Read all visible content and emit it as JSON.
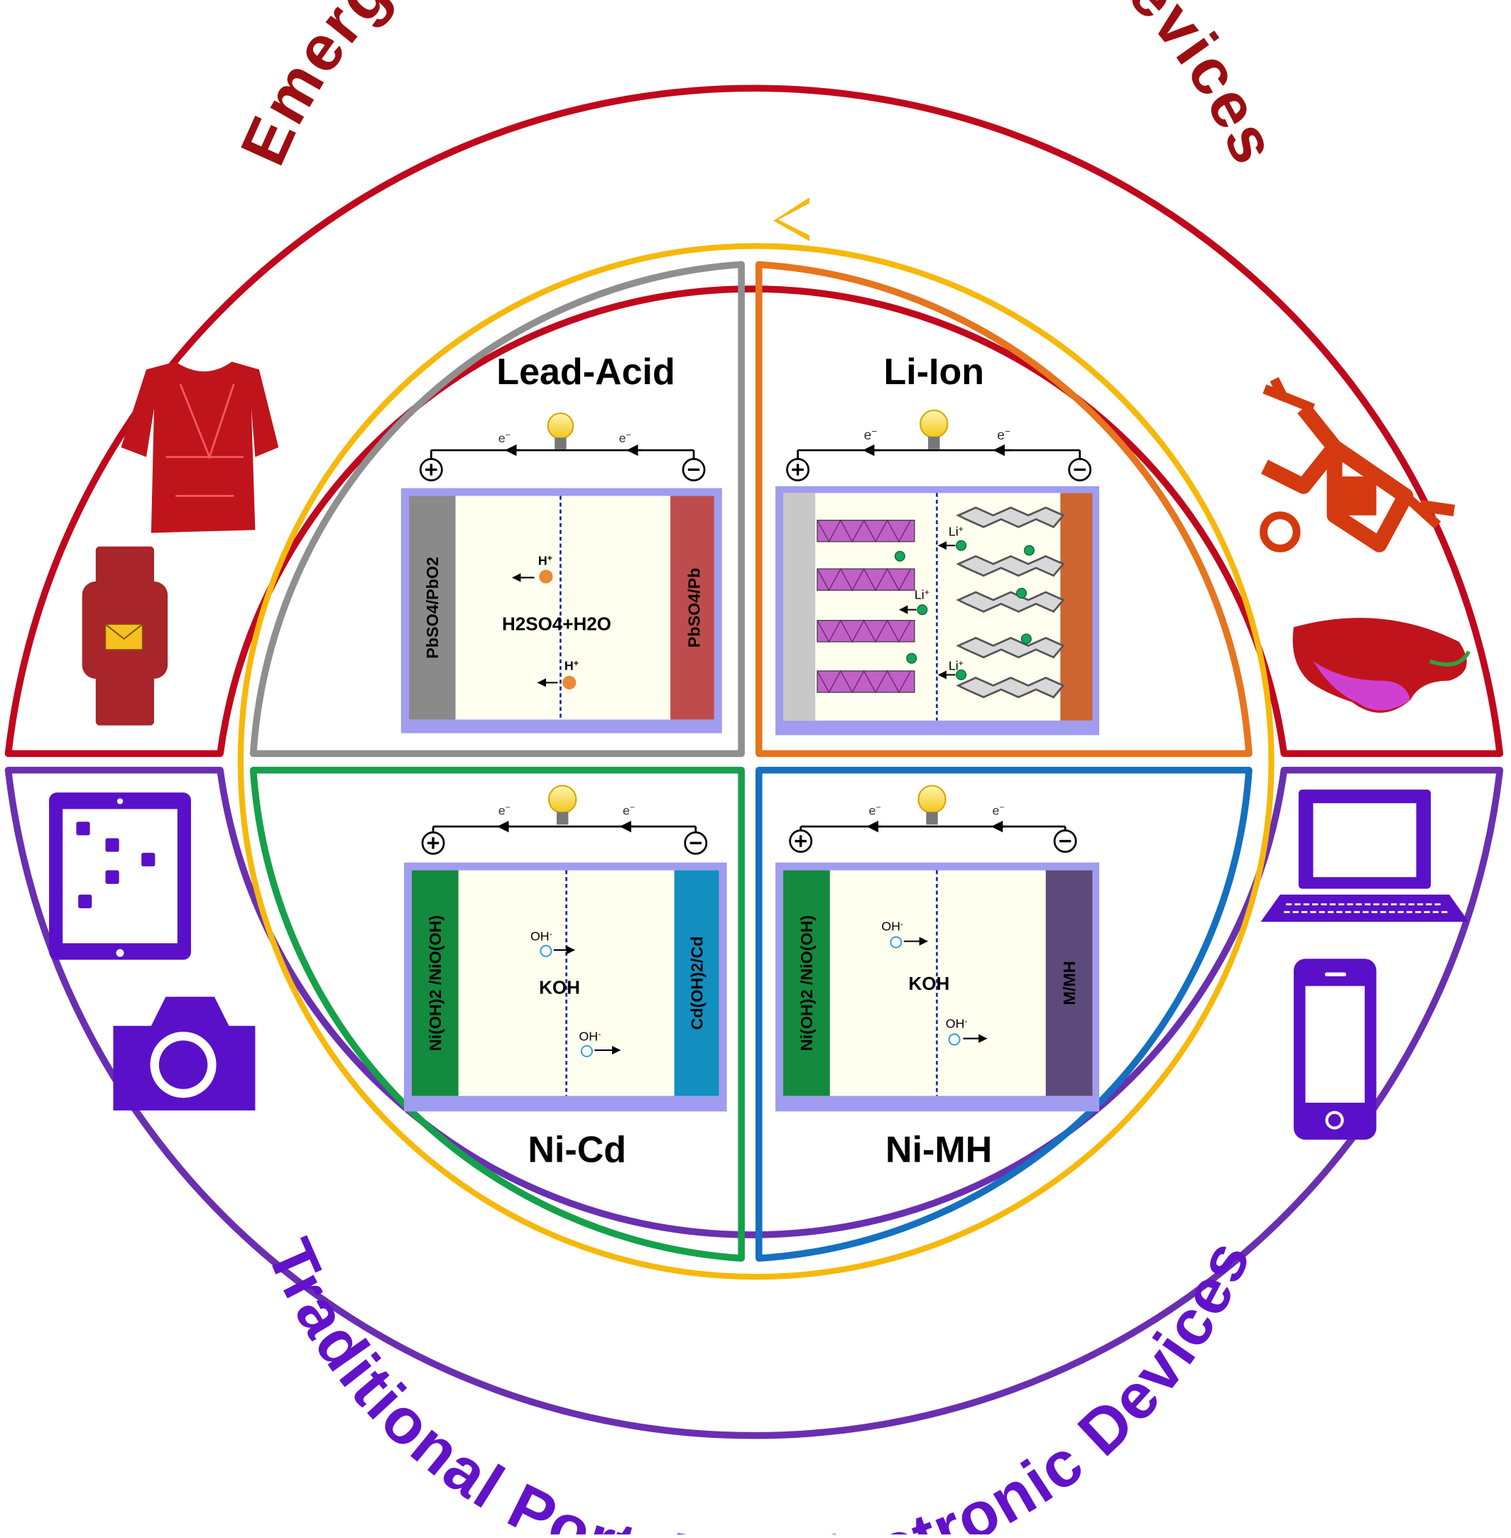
{
  "headings": {
    "emerging": "Emerging Portable Electronic Devices",
    "traditional": "Traditional Portable Electronic Devices"
  },
  "colors": {
    "emerging": "#c0081d",
    "emerging_text": "#9b0e12",
    "traditional": "#6a2fb0",
    "traditional_text": "#6212c8",
    "arrow_ring": "#f6b80b",
    "lead_acid": "#8f8f8f",
    "li_ion": "#e6751e",
    "ni_cd": "#16a04a",
    "ni_mh": "#1570c0",
    "cell_frame": "#a09cf0",
    "electrolyte": "#fffff0",
    "device_red": "#c0141c",
    "device_purple": "#5a10c8"
  },
  "batteries": {
    "lead_acid": {
      "title": "Lead-Acid",
      "electron": "e",
      "electron_sup": "−",
      "left_electrode": "PbSO4/PbO2",
      "right_electrode": "PbSO4/Pb",
      "electrolyte": "H2SO4+H2O",
      "ion": "H",
      "ion_sup": "+"
    },
    "li_ion": {
      "title": "Li-Ion",
      "electron": "e",
      "electron_sup": "−",
      "ion": "Li",
      "ion_sup": "+"
    },
    "ni_cd": {
      "title": "Ni-Cd",
      "electron": "e",
      "electron_sup": "−",
      "left_electrode": "Ni(OH)2 /NiO(OH)",
      "right_electrode": "Cd(OH)2/Cd",
      "electrolyte": "KOH",
      "ion": "OH",
      "ion_sup": "-"
    },
    "ni_mh": {
      "title": "Ni-MH",
      "electron": "e",
      "electron_sup": "−",
      "left_electrode": "Ni(OH)2 /NiO(OH)",
      "right_electrode": "M/MH",
      "electrolyte": "KOH",
      "ion": "OH",
      "ion_sup": "-"
    }
  },
  "devices": {
    "emerging": [
      "smart-shirt-icon",
      "smartwatch-icon",
      "drone-icon",
      "vr-glasses-icon"
    ],
    "traditional": [
      "tablet-icon",
      "camera-icon",
      "laptop-icon",
      "smartphone-icon"
    ]
  }
}
